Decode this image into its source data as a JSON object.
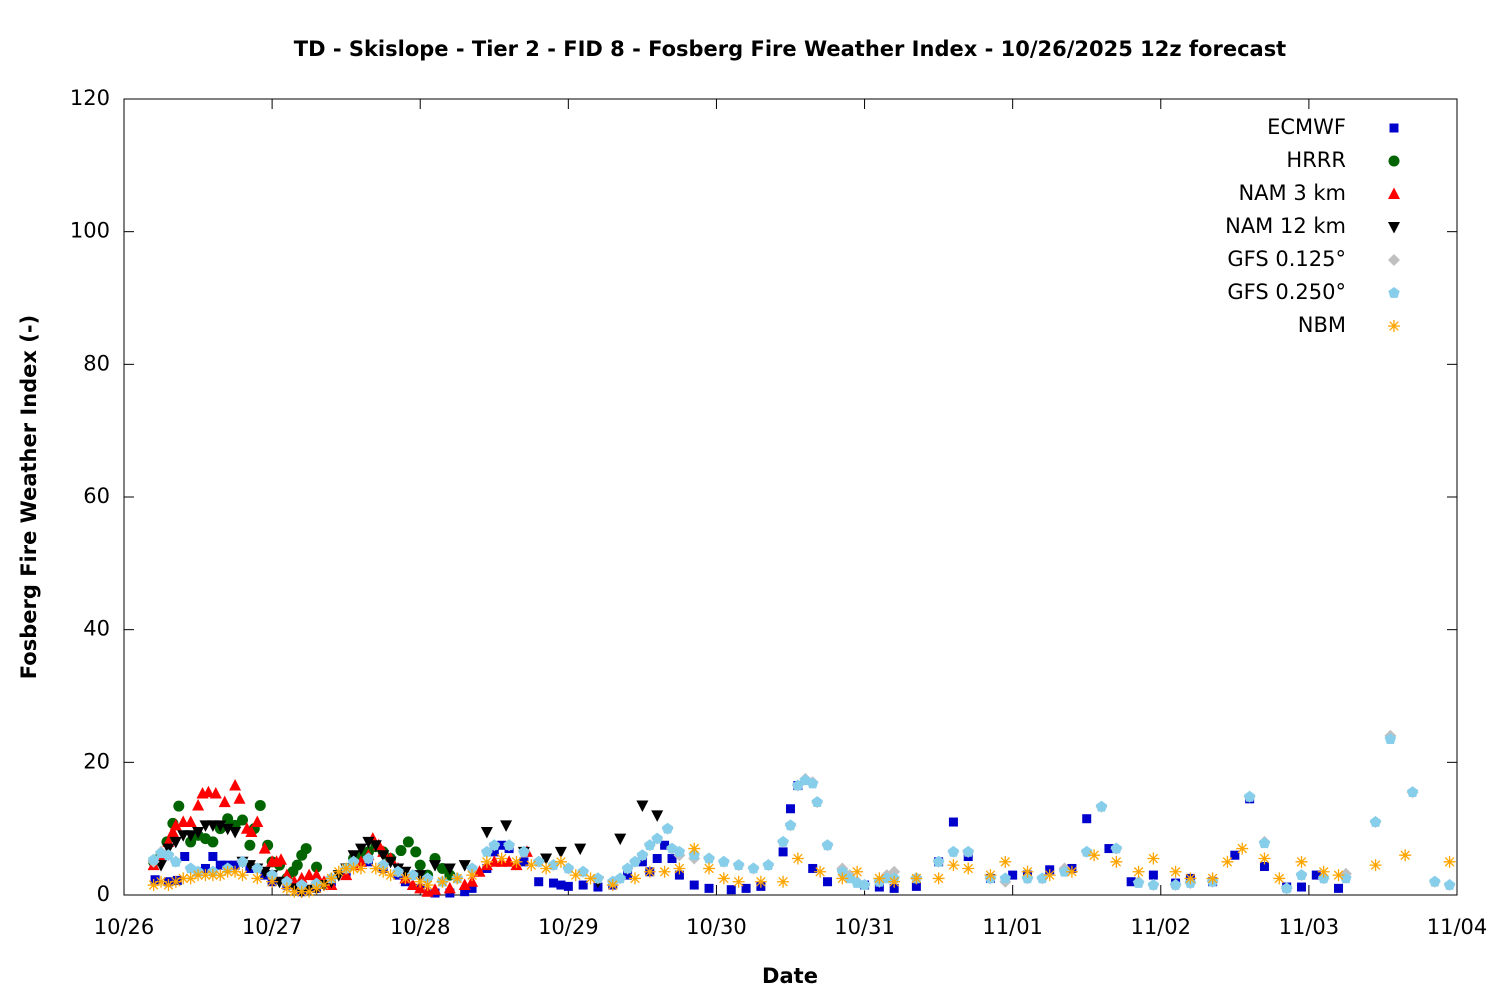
{
  "chart_data": {
    "type": "scatter",
    "title": "TD - Skislope - Tier 2 - FID 8 - Fosberg Fire Weather Index - 10/26/2025 12z forecast",
    "x_label": "Date",
    "y_label": "Fosberg Fire Weather Index (-)",
    "xlim": [
      0,
      9
    ],
    "xticks": [
      {
        "value": 0,
        "label": "10/26"
      },
      {
        "value": 1,
        "label": "10/27"
      },
      {
        "value": 2,
        "label": "10/28"
      },
      {
        "value": 3,
        "label": "10/29"
      },
      {
        "value": 4,
        "label": "10/30"
      },
      {
        "value": 5,
        "label": "10/31"
      },
      {
        "value": 6,
        "label": "11/01"
      },
      {
        "value": 7,
        "label": "11/02"
      },
      {
        "value": 8,
        "label": "11/03"
      },
      {
        "value": 9,
        "label": "11/04"
      }
    ],
    "ylim": [
      0,
      120
    ],
    "yticks": [
      0,
      20,
      40,
      60,
      80,
      100,
      120
    ],
    "grid": false,
    "legend_position": "top-right",
    "series": [
      {
        "name": "ECMWF",
        "color": "#0000cc",
        "marker": "square",
        "x": [
          0.21,
          0.3,
          0.36,
          0.41,
          0.5,
          0.55,
          0.6,
          0.65,
          0.7,
          0.75,
          0.85,
          0.95,
          1.0,
          1.1,
          1.2,
          1.3,
          1.4,
          1.5,
          1.65,
          1.75,
          1.85,
          1.9,
          2.0,
          2.1,
          2.2,
          2.3,
          2.35,
          2.45,
          2.5,
          2.55,
          2.6,
          2.7,
          2.8,
          2.9,
          2.95,
          3.0,
          3.1,
          3.2,
          3.3,
          3.4,
          3.5,
          3.55,
          3.6,
          3.65,
          3.7,
          3.75,
          3.85,
          3.95,
          4.1,
          4.2,
          4.3,
          4.45,
          4.5,
          4.55,
          4.65,
          4.75,
          5.0,
          5.1,
          5.2,
          5.35,
          5.5,
          5.6,
          5.7,
          5.85,
          6.0,
          6.1,
          6.25,
          6.4,
          6.5,
          6.65,
          6.8,
          6.95,
          7.1,
          7.2,
          7.35,
          7.5,
          7.6,
          7.7,
          7.85,
          7.95,
          8.05,
          8.2
        ],
        "values": [
          2.3,
          2,
          2.2,
          5.8,
          3.5,
          4,
          5.8,
          4.5,
          4.5,
          4.5,
          4,
          3,
          2,
          1.5,
          0.5,
          1,
          2,
          3.5,
          5,
          4,
          3,
          2,
          1,
          0.3,
          0.3,
          0.5,
          1,
          4,
          6.5,
          7.5,
          7,
          5,
          2,
          1.8,
          1.5,
          1.3,
          1.5,
          1.2,
          1.5,
          3,
          5,
          3.5,
          5.5,
          7.5,
          5.5,
          3,
          1.5,
          1,
          0.8,
          1,
          1.3,
          6.5,
          13,
          16.5,
          4,
          2,
          1.5,
          1.2,
          1,
          1.3,
          5,
          11,
          5.8,
          2.5,
          3,
          3,
          3.8,
          4,
          11.5,
          7,
          2,
          3,
          1.8,
          2.5,
          2,
          6,
          14.5,
          4.3,
          1.2,
          1.2,
          3,
          1
        ]
      },
      {
        "name": "HRRR",
        "color": "#006400",
        "marker": "circle",
        "x": [
          0.2,
          0.25,
          0.29,
          0.33,
          0.37,
          0.45,
          0.5,
          0.55,
          0.6,
          0.65,
          0.7,
          0.75,
          0.8,
          0.85,
          0.88,
          0.92,
          0.97,
          1.0,
          1.05,
          1.1,
          1.14,
          1.17,
          1.2,
          1.23,
          1.3,
          1.5,
          1.55,
          1.6,
          1.65,
          1.7,
          1.75,
          1.8,
          1.87,
          1.92,
          1.97,
          2.0,
          2.05,
          2.1,
          2.15,
          2.2
        ],
        "values": [
          5,
          6,
          8,
          10.8,
          13.4,
          8,
          9,
          8.5,
          8,
          10,
          11.5,
          10.5,
          11.3,
          7.5,
          10,
          13.5,
          7.5,
          5,
          4.5,
          2.5,
          3.5,
          4.5,
          6,
          7,
          4.2,
          4,
          5.5,
          6,
          6.5,
          7.3,
          6.5,
          5.5,
          6.7,
          8,
          6.5,
          4.5,
          3,
          5.5,
          4,
          3
        ]
      },
      {
        "name": "NAM 3 km",
        "color": "#ff0000",
        "marker": "triangle-up",
        "x": [
          0.2,
          0.25,
          0.3,
          0.33,
          0.35,
          0.4,
          0.45,
          0.5,
          0.53,
          0.57,
          0.62,
          0.68,
          0.75,
          0.78,
          0.83,
          0.86,
          0.9,
          0.95,
          1.0,
          1.03,
          1.06,
          1.1,
          1.15,
          1.2,
          1.25,
          1.3,
          1.35,
          1.4,
          1.5,
          1.55,
          1.6,
          1.65,
          1.68,
          1.72,
          1.75,
          1.8,
          1.85,
          1.9,
          1.95,
          2.0,
          2.05,
          2.1,
          2.2,
          2.3,
          2.35,
          2.4,
          2.45,
          2.5,
          2.55,
          2.6,
          2.65,
          2.72
        ],
        "values": [
          4.5,
          6,
          8,
          9.5,
          10.5,
          11,
          11,
          13.5,
          15.3,
          15.5,
          15.3,
          14,
          16.5,
          14.5,
          10,
          9.5,
          11,
          7,
          5,
          5,
          5.3,
          3,
          2,
          2.5,
          3,
          3,
          2,
          1.5,
          3,
          4.5,
          5,
          6,
          8.5,
          7.5,
          6.5,
          5.5,
          4,
          2.5,
          1.5,
          1,
          0.5,
          0.8,
          1,
          1.5,
          2,
          3.5,
          4.5,
          5,
          5,
          5,
          4.5,
          6.5
        ]
      },
      {
        "name": "NAM 12 km",
        "color": "#000000",
        "marker": "triangle-down",
        "x": [
          0.25,
          0.3,
          0.35,
          0.4,
          0.45,
          0.5,
          0.55,
          0.6,
          0.65,
          0.7,
          0.75,
          0.8,
          0.85,
          0.9,
          0.95,
          1.0,
          1.05,
          1.1,
          1.15,
          1.2,
          1.25,
          1.3,
          1.35,
          1.4,
          1.45,
          1.5,
          1.55,
          1.6,
          1.65,
          1.7,
          1.75,
          1.8,
          1.85,
          1.9,
          2.0,
          2.1,
          2.2,
          2.3,
          2.45,
          2.58,
          2.7,
          2.85,
          2.95,
          3.08,
          3.2,
          3.35,
          3.5,
          3.6
        ],
        "values": [
          4.5,
          7,
          8,
          9,
          9,
          9.5,
          10.5,
          10.5,
          10.5,
          10,
          9.5,
          5,
          4.5,
          4,
          3.5,
          3,
          2,
          1.5,
          1,
          0.5,
          0.8,
          1,
          1.5,
          2,
          3,
          4,
          6,
          7,
          8,
          7.5,
          6,
          5,
          4,
          3.5,
          3,
          4.5,
          4,
          4.5,
          9.5,
          10.5,
          6.5,
          5.5,
          6.5,
          7,
          2,
          8.5,
          13.5,
          12
        ]
      },
      {
        "name": "GFS 0.125°",
        "color": "#c0c0c0",
        "marker": "diamond",
        "x": [
          0.2,
          0.25,
          0.3,
          0.35,
          0.45,
          0.5,
          0.6,
          0.7,
          0.8,
          0.9,
          1.0,
          1.1,
          1.2,
          1.3,
          1.4,
          1.5,
          1.55,
          1.65,
          1.75,
          1.85,
          1.95,
          2.05,
          2.15,
          2.25,
          2.35,
          2.45,
          2.5,
          2.6,
          2.7,
          2.8,
          2.9,
          3.0,
          3.1,
          3.2,
          3.3,
          3.35,
          3.4,
          3.45,
          3.5,
          3.55,
          3.6,
          3.67,
          3.7,
          3.75,
          3.85,
          3.95,
          4.05,
          4.15,
          4.25,
          4.35,
          4.45,
          4.5,
          4.55,
          4.6,
          4.65,
          4.68,
          4.75,
          4.85,
          4.9,
          4.95,
          5.0,
          5.1,
          5.15,
          5.2,
          5.35,
          5.5,
          5.6,
          5.7,
          5.85,
          5.95,
          6.1,
          6.2,
          6.35,
          6.5,
          6.6,
          6.7,
          6.85,
          6.95,
          7.1,
          7.2,
          7.35,
          7.6,
          7.7,
          7.85,
          7.95,
          8.1,
          8.25,
          8.45,
          8.55,
          8.7,
          8.85,
          8.95
        ],
        "values": [
          5,
          6.5,
          6,
          5,
          4,
          3.5,
          3.5,
          4,
          5,
          4,
          3,
          2,
          1.5,
          1.7,
          2.5,
          4,
          5,
          5.5,
          4.5,
          3.5,
          3,
          2.5,
          2,
          2.5,
          4,
          6.5,
          7.5,
          7.5,
          6.5,
          5,
          4.5,
          4,
          3.5,
          2.5,
          2,
          2.5,
          4,
          5,
          6,
          7.5,
          8.5,
          10,
          7,
          6,
          5.5,
          5.5,
          5,
          4.5,
          4,
          4.5,
          8,
          10.5,
          16.5,
          17.5,
          17,
          14,
          7.5,
          4,
          3,
          2,
          1.5,
          2,
          3,
          3.5,
          2.5,
          5,
          6.5,
          6.5,
          2.5,
          2,
          2.5,
          2.5,
          4,
          6.5,
          13.3,
          7,
          2,
          1.5,
          1.5,
          1.8,
          2,
          14.8,
          8,
          1,
          3,
          2.5,
          3.2,
          11,
          24,
          15.5,
          2,
          1.5
        ]
      },
      {
        "name": "GFS 0.250°",
        "color": "#87ceeb",
        "marker": "pentagon",
        "x": [
          0.2,
          0.25,
          0.3,
          0.35,
          0.45,
          0.5,
          0.6,
          0.7,
          0.8,
          0.9,
          1.0,
          1.1,
          1.2,
          1.3,
          1.4,
          1.5,
          1.55,
          1.65,
          1.75,
          1.85,
          1.95,
          2.05,
          2.15,
          2.25,
          2.35,
          2.45,
          2.5,
          2.6,
          2.7,
          2.8,
          2.9,
          3.0,
          3.1,
          3.2,
          3.3,
          3.35,
          3.4,
          3.45,
          3.5,
          3.55,
          3.6,
          3.67,
          3.7,
          3.75,
          3.85,
          3.95,
          4.05,
          4.15,
          4.25,
          4.35,
          4.45,
          4.5,
          4.55,
          4.6,
          4.65,
          4.68,
          4.75,
          4.85,
          4.9,
          4.95,
          5.0,
          5.1,
          5.15,
          5.2,
          5.35,
          5.5,
          5.6,
          5.7,
          5.85,
          5.95,
          6.1,
          6.2,
          6.35,
          6.5,
          6.6,
          6.7,
          6.85,
          6.95,
          7.1,
          7.2,
          7.35,
          7.6,
          7.7,
          7.85,
          7.95,
          8.1,
          8.25,
          8.45,
          8.55,
          8.7,
          8.85,
          8.95
        ],
        "values": [
          5.3,
          6.3,
          6,
          5,
          4,
          3.5,
          3.5,
          4,
          5,
          4,
          3,
          2,
          1.5,
          1.7,
          2.5,
          4,
          5,
          5.5,
          4.5,
          3.5,
          3,
          2.5,
          2,
          2.5,
          4,
          6.5,
          7.5,
          7.5,
          6.5,
          5,
          4.5,
          4,
          3.5,
          2.5,
          2,
          2.5,
          4,
          5,
          6,
          7.5,
          8.5,
          10,
          7,
          6.5,
          6,
          5.5,
          5,
          4.5,
          4,
          4.5,
          8,
          10.5,
          16.5,
          17.3,
          16.8,
          14,
          7.5,
          3.5,
          2.5,
          1.8,
          1.5,
          2,
          2.5,
          2.5,
          2.5,
          5,
          6.5,
          6.5,
          2.5,
          2.5,
          2.5,
          2.5,
          3.5,
          6.5,
          13.3,
          7,
          1.8,
          1.5,
          1.5,
          1.8,
          2,
          14.8,
          7.8,
          1,
          3,
          2.5,
          2.5,
          11,
          23.5,
          15.5,
          2,
          1.5
        ]
      },
      {
        "name": "NBM",
        "color": "#ffa500",
        "marker": "star",
        "x": [
          0.2,
          0.25,
          0.3,
          0.35,
          0.4,
          0.45,
          0.5,
          0.55,
          0.6,
          0.65,
          0.7,
          0.75,
          0.8,
          0.9,
          1.0,
          1.1,
          1.15,
          1.2,
          1.25,
          1.3,
          1.35,
          1.4,
          1.45,
          1.5,
          1.55,
          1.6,
          1.7,
          1.75,
          1.8,
          1.9,
          2.0,
          2.05,
          2.15,
          2.25,
          2.35,
          2.45,
          2.55,
          2.65,
          2.75,
          2.85,
          2.95,
          3.05,
          3.15,
          3.3,
          3.45,
          3.55,
          3.65,
          3.75,
          3.85,
          3.95,
          4.05,
          4.15,
          4.3,
          4.45,
          4.55,
          4.7,
          4.85,
          4.95,
          5.1,
          5.2,
          5.35,
          5.5,
          5.6,
          5.7,
          5.85,
          5.95,
          6.1,
          6.25,
          6.4,
          6.55,
          6.7,
          6.85,
          6.95,
          7.1,
          7.2,
          7.35,
          7.45,
          7.55,
          7.7,
          7.8,
          7.95,
          8.1,
          8.2,
          8.45,
          8.65,
          8.95
        ],
        "values": [
          1.5,
          2,
          1.5,
          2,
          2.5,
          2.5,
          3,
          3,
          3,
          3,
          3.5,
          3.5,
          3,
          2.5,
          2,
          1,
          0.5,
          0.5,
          0.5,
          1,
          1.5,
          2.5,
          3.5,
          4,
          4,
          4,
          4,
          3.5,
          3,
          2.5,
          2,
          1.5,
          2,
          2.5,
          3,
          5,
          5.5,
          5,
          4.5,
          4,
          5,
          3,
          2.5,
          1.5,
          2.5,
          3.5,
          3.5,
          4,
          7,
          4,
          2.5,
          2,
          2,
          2,
          5.5,
          3.5,
          2.5,
          3.5,
          2.5,
          2,
          2.5,
          2.5,
          4.5,
          4,
          3,
          5,
          3.5,
          3,
          3.5,
          6,
          5,
          3.5,
          5.5,
          3.5,
          2.5,
          2.5,
          5,
          7,
          5.5,
          2.5,
          5,
          3.5,
          3,
          4.5,
          6,
          5
        ]
      }
    ]
  }
}
